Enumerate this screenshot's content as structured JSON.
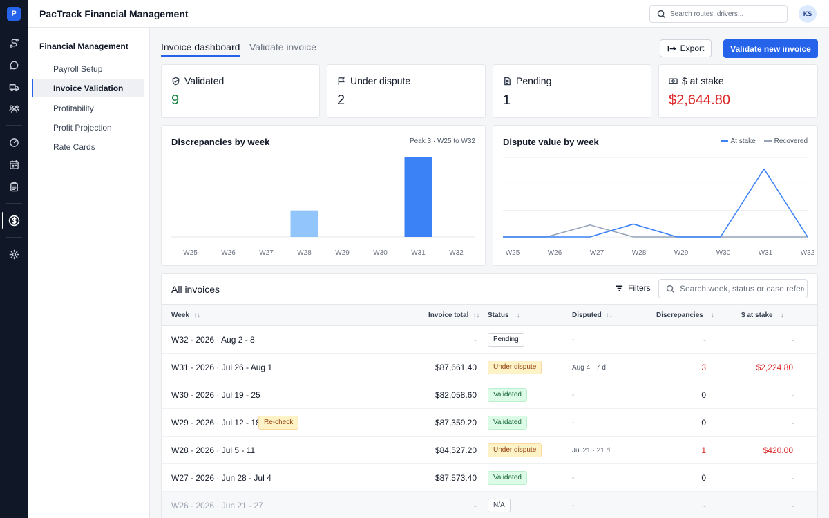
{
  "app": {
    "logo": "P",
    "title": "PacTrack Financial Management",
    "user_initials": "KS"
  },
  "global_search": {
    "placeholder": "Search routes, drivers..."
  },
  "rail": {
    "icons": [
      "route-icon",
      "chat-icon",
      "truck-icon",
      "team-icon",
      "gauge-icon",
      "calendar-icon",
      "clipboard-icon",
      "dollar-icon",
      "gear-icon"
    ],
    "active": "dollar-icon"
  },
  "sidebar": {
    "heading": "Financial Management",
    "items": [
      {
        "label": "Payroll Setup"
      },
      {
        "label": "Invoice Validation",
        "active": true
      },
      {
        "label": "Profitability"
      },
      {
        "label": "Profit Projection"
      },
      {
        "label": "Rate Cards"
      }
    ]
  },
  "tabs": [
    {
      "label": "Invoice dashboard",
      "active": true
    },
    {
      "label": "Validate invoice"
    }
  ],
  "actions": {
    "export": "Export",
    "primary": "Validate new invoice"
  },
  "stats": [
    {
      "label": "Validated",
      "value": "9",
      "icon": "shield-check-icon",
      "color": "#15803d"
    },
    {
      "label": "Under dispute",
      "value": "2",
      "icon": "flag-icon"
    },
    {
      "label": "Pending",
      "value": "1",
      "icon": "document-icon"
    },
    {
      "label": "$ at stake",
      "value": "$2,644.80",
      "icon": "money-icon",
      "color": "#dc2626"
    }
  ],
  "chart_data": [
    {
      "type": "bar",
      "title": "Discrepancies by week",
      "note": "Peak 3 · W25 to W32",
      "categories": [
        "W25",
        "W26",
        "W27",
        "W28",
        "W29",
        "W30",
        "W31",
        "W32"
      ],
      "values": [
        0,
        0,
        0,
        1,
        0,
        0,
        3,
        0
      ],
      "ylim": [
        0,
        3
      ],
      "colors": {
        "W28": "#93c5fd",
        "W31": "#3b82f6"
      }
    },
    {
      "type": "line",
      "title": "Dispute value by week",
      "categories": [
        "W25",
        "W26",
        "W27",
        "W28",
        "W29",
        "W30",
        "W31",
        "W32"
      ],
      "series": [
        {
          "name": "At stake",
          "color": "#3b82f6",
          "values": [
            0,
            0,
            0,
            420.0,
            0,
            0,
            2224.8,
            0
          ]
        },
        {
          "name": "Recovered",
          "color": "#94a3b8",
          "values": [
            0,
            0,
            390,
            0,
            0,
            0,
            0,
            0
          ]
        }
      ],
      "ylim": [
        0,
        2600
      ],
      "grid": true
    }
  ],
  "table": {
    "title": "All invoices",
    "filters_label": "Filters",
    "search_placeholder": "Search week, status or case reference",
    "columns": [
      "Week",
      "Invoice total",
      "Status",
      "Disputed",
      "Discrepancies",
      "$ at stake"
    ],
    "rows": [
      {
        "week": "W32 · 2026 · Aug 2 - 8",
        "total": "-",
        "status": "Pending",
        "disputed": "-",
        "discrepancies": "-",
        "at_stake": "-"
      },
      {
        "week": "W31 · 2026 · Jul 26 - Aug 1",
        "total": "$87,661.40",
        "status": "Under dispute",
        "disputed": "Aug 4 · 7 d",
        "discrepancies": "3",
        "at_stake": "$2,224.80"
      },
      {
        "week": "W30 · 2026 · Jul 19 - 25",
        "total": "$82,058.60",
        "status": "Validated",
        "disputed": "-",
        "discrepancies": "0",
        "at_stake": "-"
      },
      {
        "week": "W29 · 2026 · Jul 12 - 18",
        "tag": "Re-check",
        "total": "$87,359.20",
        "status": "Validated",
        "disputed": "-",
        "discrepancies": "0",
        "at_stake": "-"
      },
      {
        "week": "W28 · 2026 · Jul 5 - 11",
        "total": "$84,527.20",
        "status": "Under dispute",
        "disputed": "Jul 21 · 21 d",
        "discrepancies": "1",
        "at_stake": "$420.00"
      },
      {
        "week": "W27 · 2026 · Jun 28 - Jul 4",
        "total": "$87,573.40",
        "status": "Validated",
        "disputed": "-",
        "discrepancies": "0",
        "at_stake": "-"
      },
      {
        "week": "W26 · 2026 · Jun 21 - 27",
        "total": "-",
        "status": "N/A",
        "disputed": "-",
        "discrepancies": "-",
        "at_stake": "-"
      }
    ]
  }
}
